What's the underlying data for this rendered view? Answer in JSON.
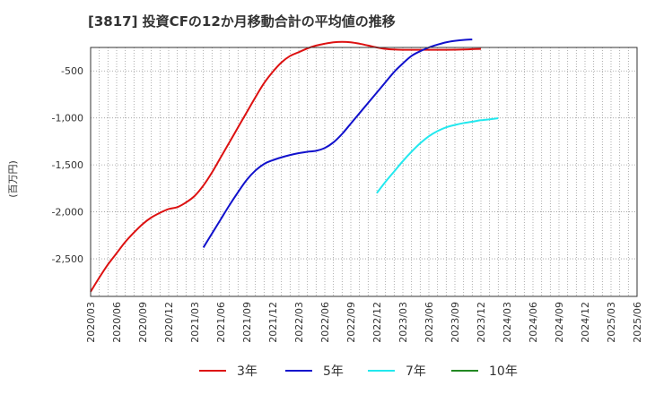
{
  "chart_data": {
    "type": "line",
    "title": "[3817]  投資CFの12か月移動合計の平均値の推移",
    "ylabel": "(百万円)",
    "xlabel": "",
    "ylim": [
      -2900,
      -250
    ],
    "yticks": [
      -500,
      -1000,
      -1500,
      -2000,
      -2500
    ],
    "ytick_labels": [
      "-500",
      "-1,000",
      "-1,500",
      "-2,000",
      "-2,500"
    ],
    "x_tick_labels": [
      "2020/03",
      "2020/06",
      "2020/09",
      "2020/12",
      "2021/03",
      "2021/06",
      "2021/09",
      "2021/12",
      "2022/03",
      "2022/06",
      "2022/09",
      "2022/12",
      "2023/03",
      "2023/06",
      "2023/09",
      "2023/12",
      "2024/03",
      "2024/06",
      "2024/09",
      "2024/12",
      "2025/03",
      "2025/06"
    ],
    "grid": true,
    "legend_position": "bottom",
    "series": [
      {
        "name": "3年",
        "color": "#dd1111",
        "start_index": 0,
        "values": [
          -2850,
          -2700,
          -2560,
          -2440,
          -2320,
          -2220,
          -2130,
          -2060,
          -2010,
          -1970,
          -1950,
          -1900,
          -1830,
          -1720,
          -1580,
          -1420,
          -1260,
          -1100,
          -940,
          -780,
          -630,
          -510,
          -410,
          -340,
          -300,
          -260,
          -230,
          -210,
          -195,
          -190,
          -195,
          -210,
          -230,
          -250,
          -265,
          -272,
          -275,
          -275,
          -275,
          -275,
          -275,
          -275,
          -274,
          -272,
          -268,
          -265
        ]
      },
      {
        "name": "5年",
        "color": "#1111cc",
        "start_index": 13,
        "values": [
          -2380,
          -2230,
          -2080,
          -1930,
          -1790,
          -1660,
          -1560,
          -1490,
          -1450,
          -1420,
          -1395,
          -1375,
          -1360,
          -1350,
          -1320,
          -1260,
          -1170,
          -1060,
          -950,
          -840,
          -730,
          -620,
          -510,
          -420,
          -340,
          -290,
          -250,
          -220,
          -195,
          -180,
          -170,
          -165
        ]
      },
      {
        "name": "7年",
        "color": "#22e8ee",
        "start_index": 33,
        "values": [
          -1800,
          -1680,
          -1570,
          -1460,
          -1360,
          -1270,
          -1195,
          -1140,
          -1100,
          -1075,
          -1055,
          -1040,
          -1025,
          -1015,
          -1003
        ]
      },
      {
        "name": "10年",
        "color": "#228822",
        "start_index": 0,
        "values": []
      }
    ]
  }
}
